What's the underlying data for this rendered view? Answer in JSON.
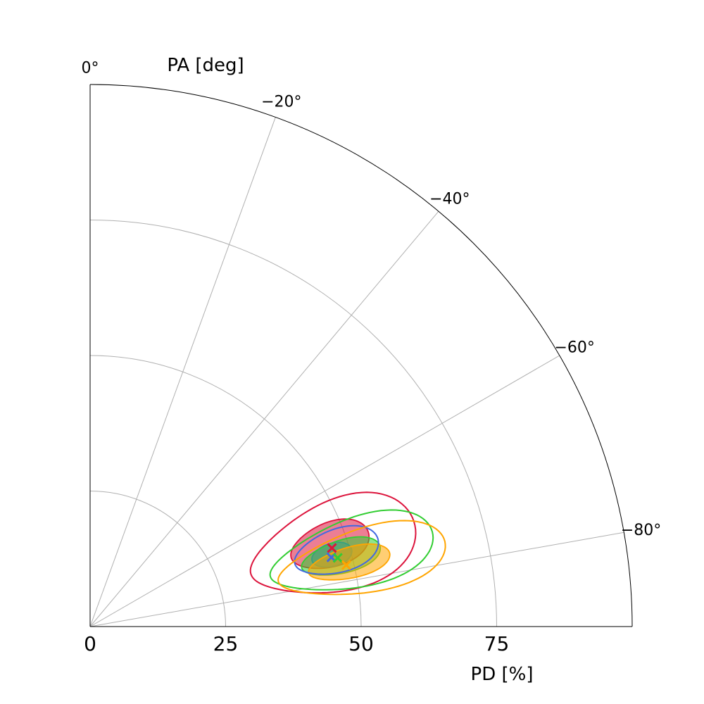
{
  "chart_data": {
    "type": "scatter",
    "projection": "polar-quadrant",
    "title": "",
    "radial_axis": {
      "label": "PD [%]",
      "ticks": [
        0,
        25,
        50,
        75
      ],
      "tick_labels": [
        "0",
        "25",
        "50",
        "75"
      ],
      "range": [
        0,
        100
      ]
    },
    "angular_axis": {
      "label": "PA [deg]",
      "ticks": [
        0,
        -20,
        -40,
        -60,
        -80
      ],
      "tick_labels": [
        "0°",
        "−20°",
        "−40°",
        "−60°",
        "−80°"
      ],
      "range": [
        -90,
        0
      ]
    },
    "grid": true,
    "series": [
      {
        "color": "#dc143c",
        "best_fit": {
          "pd": 46.9,
          "pa": -72
        },
        "contour_inner": {
          "pd": 46.7,
          "pa": -71.2,
          "sigma_pd": 7.5,
          "sigma_pa": 5.0
        },
        "contour_outer": {
          "pd": 47.0,
          "pa": -72.0,
          "sigma_pd": 15.8,
          "sigma_pa": 10.0
        }
      },
      {
        "color": "#4169e1",
        "best_fit": {
          "pd": 46.3,
          "pa": -74
        },
        "contour_inner": {
          "pd": 46.5,
          "pa": -73.5,
          "sigma_pd": 3.8,
          "sigma_pa": 2.6
        },
        "contour_outer": {
          "pd": 47.5,
          "pa": -73.0,
          "sigma_pd": 8.0,
          "sigma_pa": 4.8
        }
      },
      {
        "color": "#32cd32",
        "best_fit": {
          "pd": 47.4,
          "pa": -74.5
        },
        "contour_inner": {
          "pd": 48.0,
          "pa": -74.5,
          "sigma_pd": 7.5,
          "sigma_pa": 3.6
        },
        "contour_outer": {
          "pd": 50.0,
          "pa": -74.5,
          "sigma_pd": 15.5,
          "sigma_pa": 7.2
        }
      },
      {
        "color": "#ffa500",
        "best_fit": {
          "pd": 48.6,
          "pa": -76.5
        },
        "contour_inner": {
          "pd": 49.2,
          "pa": -76.2,
          "sigma_pd": 7.7,
          "sigma_pa": 3.3
        },
        "contour_outer": {
          "pd": 51.5,
          "pa": -76.5,
          "sigma_pd": 15.8,
          "sigma_pa": 6.5
        }
      }
    ]
  }
}
